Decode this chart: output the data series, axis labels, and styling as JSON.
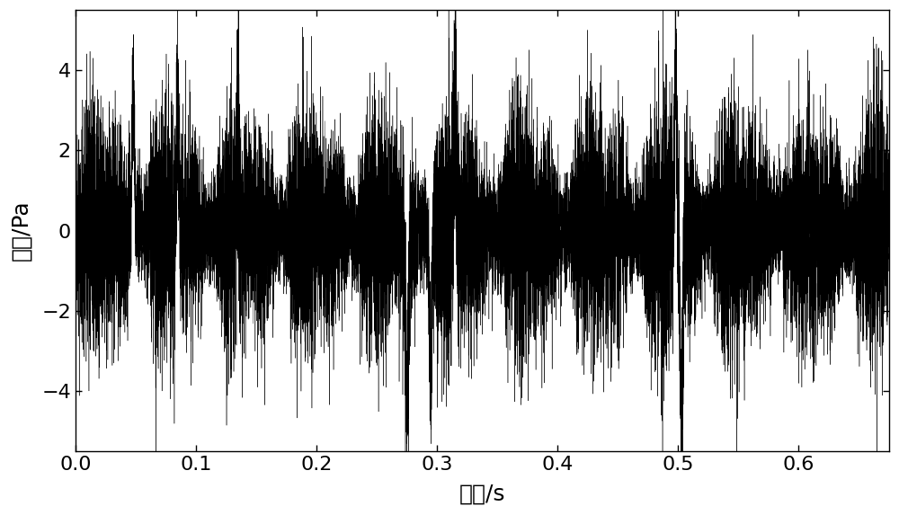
{
  "xlabel": "时间/s",
  "ylabel": "幅値/Pa",
  "xlim": [
    0.0,
    0.675
  ],
  "ylim": [
    -5.5,
    5.5
  ],
  "xticks": [
    0.0,
    0.1,
    0.2,
    0.3,
    0.4,
    0.5,
    0.6
  ],
  "yticks": [
    -4,
    -2,
    0,
    2,
    4
  ],
  "line_color": "#000000",
  "background_color": "#ffffff",
  "duration": 0.675,
  "sample_rate": 25000,
  "seed": 1234,
  "xlabel_fontsize": 18,
  "ylabel_fontsize": 18,
  "tick_fontsize": 16,
  "line_width": 0.3
}
